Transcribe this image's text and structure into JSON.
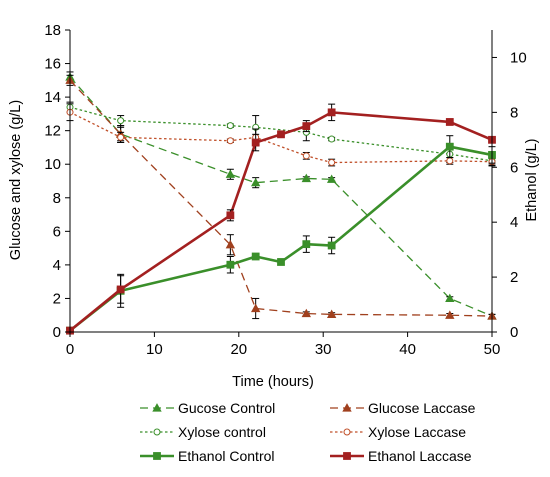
{
  "chart_data": {
    "type": "line",
    "title": "",
    "xlabel": "Time (hours)",
    "ylabel_left": "Glucose and xylose (g/L)",
    "ylabel_right": "Ethanol (g/L)",
    "xlim": [
      0,
      50
    ],
    "ylim_left": [
      0,
      18
    ],
    "ylim_right": [
      0,
      11
    ],
    "x_ticks": [
      "0",
      "10",
      "20",
      "30",
      "40",
      "50"
    ],
    "y_left_ticks": [
      "0",
      "2",
      "4",
      "6",
      "8",
      "10",
      "12",
      "14",
      "16",
      "18"
    ],
    "y_right_ticks": [
      "0",
      "2",
      "4",
      "6",
      "8",
      "10"
    ],
    "legend_placement": "bottom",
    "series": [
      {
        "name": "Gucose Control",
        "axis": "left",
        "color": "#3a8f2a",
        "dash": "8,5",
        "marker": "triangle",
        "filled": true,
        "width": 1.3,
        "x": [
          0,
          6,
          19,
          22,
          28,
          31,
          45,
          50
        ],
        "y": [
          15.2,
          11.8,
          9.4,
          8.9,
          9.15,
          9.1,
          2.0,
          0.95
        ],
        "err": [
          0.3,
          0.5,
          0.3,
          0.3,
          0.1,
          0.1,
          0.1,
          0.1
        ]
      },
      {
        "name": "Glucose Laccase",
        "axis": "left",
        "color": "#a0401e",
        "dash": "8,5",
        "marker": "triangle",
        "filled": true,
        "width": 1.3,
        "x": [
          0,
          6,
          19,
          22,
          28,
          31,
          45,
          50
        ],
        "y": [
          15.0,
          11.8,
          5.2,
          1.4,
          1.1,
          1.05,
          1.0,
          0.95
        ],
        "err": [
          0.3,
          0.4,
          0.6,
          0.6,
          0.1,
          0.1,
          0.1,
          0.1
        ]
      },
      {
        "name": "Xylose control",
        "axis": "left",
        "color": "#3a8f2a",
        "dash": "2.5,2.5",
        "marker": "circle",
        "filled": false,
        "width": 1.3,
        "x": [
          0,
          6,
          19,
          22,
          28,
          31,
          45,
          50
        ],
        "y": [
          13.4,
          12.6,
          12.3,
          12.2,
          11.9,
          11.5,
          10.6,
          10.2
        ],
        "err": [
          0.3,
          0.3,
          0.1,
          0.7,
          0.5,
          0.1,
          0.5,
          0.3
        ]
      },
      {
        "name": "Xylose Laccase",
        "axis": "left",
        "color": "#c0502a",
        "dash": "2.5,2.5",
        "marker": "circle",
        "filled": false,
        "width": 1.3,
        "x": [
          0,
          6,
          19,
          22,
          28,
          31,
          45,
          50
        ],
        "y": [
          13.1,
          11.6,
          11.4,
          11.6,
          10.5,
          10.1,
          10.2,
          10.15
        ],
        "err": [
          0.5,
          0.3,
          0.1,
          0.5,
          0.2,
          0.2,
          0.2,
          0.2
        ]
      },
      {
        "name": "Ethanol Control",
        "axis": "right",
        "color": "#3a8f2a",
        "dash": "",
        "marker": "square",
        "filled": true,
        "width": 2.6,
        "x": [
          0,
          6,
          19,
          22,
          25,
          28,
          31,
          45,
          50
        ],
        "y": [
          0.05,
          1.5,
          2.45,
          2.75,
          2.55,
          3.2,
          3.15,
          6.75,
          6.45
        ],
        "err": [
          0.05,
          0.6,
          0.3,
          0.05,
          0.05,
          0.3,
          0.3,
          0.4,
          0.3
        ]
      },
      {
        "name": "Ethanol Laccase",
        "axis": "right",
        "color": "#a32020",
        "dash": "",
        "marker": "square",
        "filled": true,
        "width": 2.6,
        "x": [
          0,
          6,
          19,
          22,
          25,
          28,
          31,
          45,
          50
        ],
        "y": [
          0.05,
          1.55,
          4.25,
          6.9,
          7.2,
          7.5,
          8.0,
          7.65,
          7.0
        ],
        "err": [
          0.05,
          0.5,
          0.2,
          0.3,
          0.05,
          0.2,
          0.3,
          0.1,
          0.1
        ]
      }
    ]
  }
}
